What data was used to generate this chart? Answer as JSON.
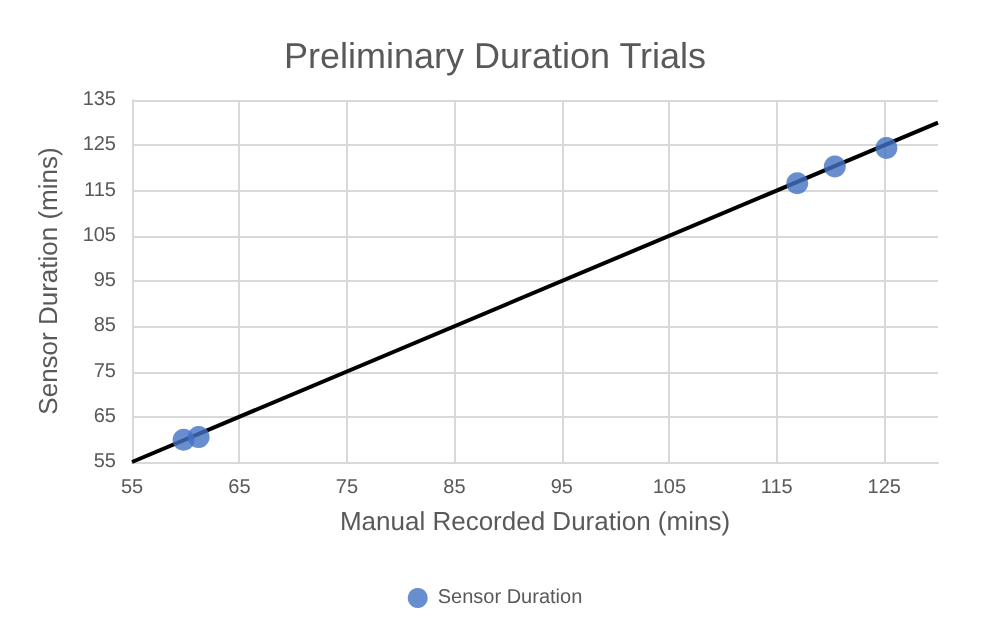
{
  "chart_data": {
    "type": "scatter",
    "title": "Preliminary Duration Trials",
    "xlabel": "Manual Recorded Duration (mins)",
    "ylabel": "Sensor Duration (mins)",
    "series": [
      {
        "name": "Sensor Duration",
        "color": "#4472c4",
        "marker": "circle",
        "x": [
          59.8,
          61.2,
          116.9,
          120.4,
          125.2
        ],
        "values": [
          59.9,
          60.5,
          116.6,
          120.3,
          124.4
        ]
      },
      {
        "type": "line",
        "color": "#000000",
        "marker": "none",
        "line_style": "solid",
        "x": [
          55,
          130
        ],
        "values": [
          55,
          130
        ]
      }
    ],
    "xlim": [
      55,
      130
    ],
    "xticks": [
      55,
      65,
      75,
      85,
      95,
      105,
      115,
      125
    ],
    "ylim": [
      55,
      135
    ],
    "yticks": [
      55,
      65,
      75,
      85,
      95,
      105,
      115,
      125,
      135
    ],
    "grid": true,
    "legend": "bottom"
  }
}
